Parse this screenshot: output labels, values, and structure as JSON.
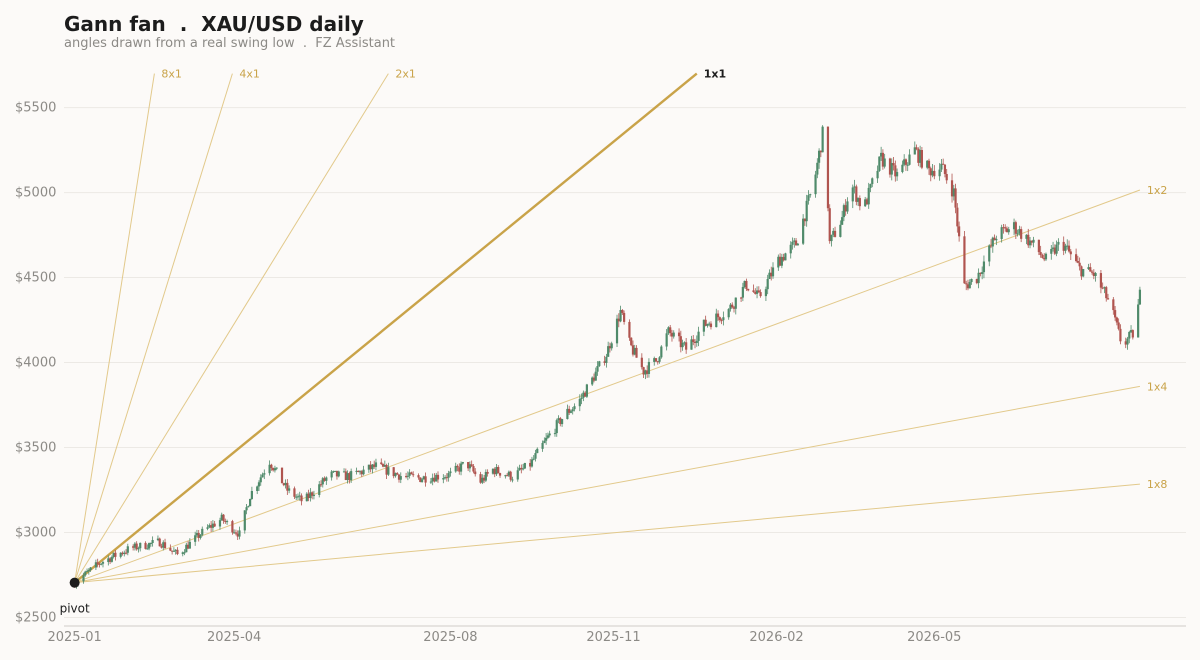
{
  "header": {
    "title": "Gann fan  .  XAU/USD daily",
    "subtitle": "angles drawn from a real swing low  .  FZ Assistant"
  },
  "colors": {
    "background": "#fcfaf8",
    "up_candle": "#4f8a6a",
    "down_candle": "#b0544f",
    "fan_line": "#e2c98b",
    "fan_main": "#c9a349",
    "grid": "#ece9e5",
    "axis_text": "#8c8a86",
    "pivot": "#1c1c1c"
  },
  "chart_data": {
    "type": "candlestick",
    "title": "Gann fan  .  XAU/USD daily",
    "subtitle": "angles drawn from a real swing low  .  FZ Assistant",
    "y_range": [
      2450,
      5780
    ],
    "x_range": [
      "2024-12-26",
      "2026-09-20"
    ],
    "y_ticks": [
      2500,
      3000,
      3500,
      4000,
      4500,
      5000,
      5500
    ],
    "y_tick_labels": [
      "$2500",
      "$3000",
      "$3500",
      "$4000",
      "$4500",
      "$5000",
      "$5500"
    ],
    "x_ticks": [
      "2025-01-01",
      "2025-04-01",
      "2025-08-01",
      "2025-11-01",
      "2026-02-01",
      "2026-05-01"
    ],
    "x_tick_labels": [
      "2025-01",
      "2025-04",
      "2025-08",
      "2025-11",
      "2026-02",
      "2026-05"
    ],
    "grid": "horizontal",
    "pivot": {
      "date": "2025-01-01",
      "price": 2705,
      "label": "pivot"
    },
    "fan_lines": [
      {
        "label": "8x1",
        "end_date": "2025-02-15",
        "end_price": 5700,
        "emphasis": false
      },
      {
        "label": "4x1",
        "end_date": "2025-03-31",
        "end_price": 5700,
        "emphasis": false
      },
      {
        "label": "2x1",
        "end_date": "2025-06-27",
        "end_price": 5700,
        "emphasis": false
      },
      {
        "label": "1x1",
        "end_date": "2025-12-18",
        "end_price": 5700,
        "emphasis": true
      },
      {
        "label": "1x2",
        "end_date": "2026-08-25",
        "end_price": 5015,
        "emphasis": false
      },
      {
        "label": "1x4",
        "end_date": "2026-08-25",
        "end_price": 3860,
        "emphasis": false
      },
      {
        "label": "1x8",
        "end_date": "2026-08-25",
        "end_price": 3285,
        "emphasis": false
      }
    ],
    "price_anchors": [
      [
        "2025-01-01",
        2705
      ],
      [
        "2025-01-15",
        2820
      ],
      [
        "2025-02-01",
        2905
      ],
      [
        "2025-02-18",
        2945
      ],
      [
        "2025-02-28",
        2870
      ],
      [
        "2025-03-15",
        3010
      ],
      [
        "2025-03-25",
        3080
      ],
      [
        "2025-04-04",
        2990
      ],
      [
        "2025-04-10",
        3220
      ],
      [
        "2025-04-21",
        3420
      ],
      [
        "2025-05-01",
        3250
      ],
      [
        "2025-05-10",
        3180
      ],
      [
        "2025-05-25",
        3340
      ],
      [
        "2025-06-05",
        3330
      ],
      [
        "2025-06-20",
        3390
      ],
      [
        "2025-07-05",
        3330
      ],
      [
        "2025-07-15",
        3320
      ],
      [
        "2025-08-01",
        3340
      ],
      [
        "2025-08-10",
        3410
      ],
      [
        "2025-08-18",
        3300
      ],
      [
        "2025-08-25",
        3370
      ],
      [
        "2025-09-05",
        3330
      ],
      [
        "2025-09-15",
        3400
      ],
      [
        "2025-09-25",
        3560
      ],
      [
        "2025-10-05",
        3700
      ],
      [
        "2025-10-12",
        3760
      ],
      [
        "2025-10-20",
        3900
      ],
      [
        "2025-10-28",
        4050
      ],
      [
        "2025-11-05",
        4300
      ],
      [
        "2025-11-10",
        4110
      ],
      [
        "2025-11-18",
        3950
      ],
      [
        "2025-11-25",
        4010
      ],
      [
        "2025-12-02",
        4180
      ],
      [
        "2025-12-12",
        4080
      ],
      [
        "2025-12-22",
        4220
      ],
      [
        "2026-01-05",
        4310
      ],
      [
        "2026-01-15",
        4460
      ],
      [
        "2026-01-22",
        4380
      ],
      [
        "2026-02-02",
        4600
      ],
      [
        "2026-02-12",
        4700
      ],
      [
        "2026-02-22",
        5050
      ],
      [
        "2026-02-28",
        5400
      ],
      [
        "2026-03-03",
        4700
      ],
      [
        "2026-03-10",
        4850
      ],
      [
        "2026-03-15",
        5050
      ],
      [
        "2026-03-22",
        4900
      ],
      [
        "2026-04-01",
        5200
      ],
      [
        "2026-04-10",
        5100
      ],
      [
        "2026-04-20",
        5250
      ],
      [
        "2026-04-28",
        5130
      ],
      [
        "2026-05-05",
        5150
      ],
      [
        "2026-05-12",
        5000
      ],
      [
        "2026-05-18",
        4450
      ],
      [
        "2026-05-25",
        4500
      ],
      [
        "2026-06-05",
        4750
      ],
      [
        "2026-06-15",
        4800
      ],
      [
        "2026-06-25",
        4700
      ],
      [
        "2026-07-03",
        4600
      ],
      [
        "2026-07-12",
        4710
      ],
      [
        "2026-07-22",
        4550
      ],
      [
        "2026-07-30",
        4520
      ],
      [
        "2026-08-08",
        4350
      ],
      [
        "2026-08-15",
        4100
      ],
      [
        "2026-08-22",
        4180
      ],
      [
        "2026-08-25",
        4400
      ]
    ]
  }
}
